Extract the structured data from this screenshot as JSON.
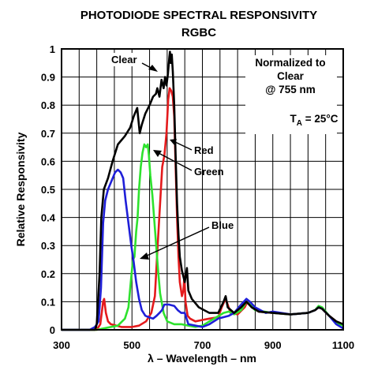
{
  "chart_data": {
    "type": "line",
    "title": "PHOTODIODE SPECTRAL RESPONSIVITY",
    "subtitle": "RGBC",
    "xlabel": "λ – Wavelength – nm",
    "ylabel": "Relative Responsivity",
    "xlim": [
      300,
      1100
    ],
    "ylim": [
      0,
      1
    ],
    "xticks": [
      "300",
      "500",
      "700",
      "900",
      "1100"
    ],
    "yticks": [
      "0",
      "0.1",
      "0.2",
      "0.3",
      "0.4",
      "0.5",
      "0.6",
      "0.7",
      "0.8",
      "0.9",
      "1"
    ],
    "grid": true,
    "notes": {
      "normalized": [
        "Normalized to",
        "Clear",
        "@ 755 nm"
      ],
      "ta_main": "T",
      "ta_sub": "A",
      "ta_value": " = 25°C"
    },
    "series": [
      {
        "name": "Clear",
        "color": "#000000",
        "points": [
          [
            300,
            0
          ],
          [
            395,
            0
          ],
          [
            400,
            0.02
          ],
          [
            408,
            0.2
          ],
          [
            413,
            0.4
          ],
          [
            420,
            0.5
          ],
          [
            432,
            0.54
          ],
          [
            445,
            0.6
          ],
          [
            460,
            0.66
          ],
          [
            480,
            0.69
          ],
          [
            495,
            0.72
          ],
          [
            505,
            0.76
          ],
          [
            515,
            0.79
          ],
          [
            522,
            0.7
          ],
          [
            528,
            0.73
          ],
          [
            538,
            0.77
          ],
          [
            550,
            0.8
          ],
          [
            560,
            0.83
          ],
          [
            568,
            0.84
          ],
          [
            572,
            0.86
          ],
          [
            578,
            0.83
          ],
          [
            584,
            0.89
          ],
          [
            590,
            0.86
          ],
          [
            594,
            0.9
          ],
          [
            598,
            0.87
          ],
          [
            602,
            0.91
          ],
          [
            606,
            0.97
          ],
          [
            608,
            0.99
          ],
          [
            610,
            0.95
          ],
          [
            613,
            0.98
          ],
          [
            616,
            0.92
          ],
          [
            620,
            0.8
          ],
          [
            624,
            0.62
          ],
          [
            628,
            0.45
          ],
          [
            632,
            0.34
          ],
          [
            636,
            0.26
          ],
          [
            642,
            0.21
          ],
          [
            650,
            0.17
          ],
          [
            656,
            0.22
          ],
          [
            660,
            0.14
          ],
          [
            670,
            0.11
          ],
          [
            690,
            0.08
          ],
          [
            720,
            0.06
          ],
          [
            745,
            0.06
          ],
          [
            760,
            0.1
          ],
          [
            766,
            0.12
          ],
          [
            772,
            0.08
          ],
          [
            790,
            0.06
          ],
          [
            810,
            0.08
          ],
          [
            825,
            0.1
          ],
          [
            840,
            0.08
          ],
          [
            860,
            0.065
          ],
          [
            900,
            0.06
          ],
          [
            950,
            0.055
          ],
          [
            1000,
            0.06
          ],
          [
            1020,
            0.07
          ],
          [
            1030,
            0.08
          ],
          [
            1040,
            0.075
          ],
          [
            1060,
            0.05
          ],
          [
            1080,
            0.03
          ],
          [
            1100,
            0.02
          ]
        ]
      },
      {
        "name": "Red",
        "color": "#e41a1c",
        "points": [
          [
            300,
            0
          ],
          [
            400,
            0
          ],
          [
            410,
            0.02
          ],
          [
            418,
            0.1
          ],
          [
            421,
            0.11
          ],
          [
            426,
            0.06
          ],
          [
            432,
            0.03
          ],
          [
            440,
            0.02
          ],
          [
            470,
            0.01
          ],
          [
            500,
            0.01
          ],
          [
            520,
            0.015
          ],
          [
            540,
            0.03
          ],
          [
            555,
            0.06
          ],
          [
            565,
            0.12
          ],
          [
            572,
            0.28
          ],
          [
            580,
            0.45
          ],
          [
            586,
            0.58
          ],
          [
            592,
            0.62
          ],
          [
            598,
            0.7
          ],
          [
            603,
            0.82
          ],
          [
            607,
            0.86
          ],
          [
            612,
            0.85
          ],
          [
            616,
            0.83
          ],
          [
            620,
            0.76
          ],
          [
            624,
            0.58
          ],
          [
            628,
            0.4
          ],
          [
            632,
            0.26
          ],
          [
            636,
            0.17
          ],
          [
            642,
            0.12
          ],
          [
            646,
            0.14
          ],
          [
            649,
            0.19
          ],
          [
            652,
            0.1
          ],
          [
            658,
            0.05
          ],
          [
            665,
            0.04
          ],
          [
            680,
            0.03
          ],
          [
            700,
            0.035
          ],
          [
            720,
            0.04
          ],
          [
            745,
            0.045
          ],
          [
            755,
            0.08
          ],
          [
            762,
            0.1
          ],
          [
            766,
            0.11
          ],
          [
            772,
            0.09
          ],
          [
            780,
            0.06
          ],
          [
            800,
            0.055
          ],
          [
            820,
            0.08
          ],
          [
            828,
            0.1
          ],
          [
            840,
            0.08
          ],
          [
            860,
            0.065
          ],
          [
            900,
            0.06
          ],
          [
            950,
            0.055
          ],
          [
            1000,
            0.06
          ],
          [
            1020,
            0.07
          ],
          [
            1030,
            0.08
          ],
          [
            1040,
            0.075
          ],
          [
            1060,
            0.05
          ],
          [
            1080,
            0.03
          ],
          [
            1100,
            0.02
          ]
        ]
      },
      {
        "name": "Green",
        "color": "#2ee22e",
        "points": [
          [
            300,
            0
          ],
          [
            400,
            0
          ],
          [
            420,
            0.005
          ],
          [
            440,
            0.01
          ],
          [
            460,
            0.015
          ],
          [
            480,
            0.04
          ],
          [
            490,
            0.08
          ],
          [
            498,
            0.19
          ],
          [
            503,
            0.25
          ],
          [
            507,
            0.26
          ],
          [
            512,
            0.35
          ],
          [
            516,
            0.4
          ],
          [
            520,
            0.5
          ],
          [
            525,
            0.58
          ],
          [
            530,
            0.63
          ],
          [
            535,
            0.66
          ],
          [
            540,
            0.65
          ],
          [
            545,
            0.66
          ],
          [
            548,
            0.62
          ],
          [
            552,
            0.55
          ],
          [
            558,
            0.48
          ],
          [
            564,
            0.38
          ],
          [
            570,
            0.28
          ],
          [
            575,
            0.2
          ],
          [
            580,
            0.13
          ],
          [
            590,
            0.06
          ],
          [
            600,
            0.03
          ],
          [
            620,
            0.02
          ],
          [
            640,
            0.02
          ],
          [
            660,
            0.015
          ],
          [
            680,
            0.01
          ],
          [
            700,
            0.015
          ],
          [
            720,
            0.03
          ],
          [
            740,
            0.045
          ],
          [
            760,
            0.06
          ],
          [
            775,
            0.065
          ],
          [
            790,
            0.055
          ],
          [
            810,
            0.07
          ],
          [
            825,
            0.1
          ],
          [
            835,
            0.09
          ],
          [
            850,
            0.07
          ],
          [
            900,
            0.06
          ],
          [
            950,
            0.055
          ],
          [
            1000,
            0.06
          ],
          [
            1020,
            0.07
          ],
          [
            1030,
            0.085
          ],
          [
            1040,
            0.08
          ],
          [
            1060,
            0.05
          ],
          [
            1080,
            0.025
          ],
          [
            1100,
            0.015
          ]
        ]
      },
      {
        "name": "Blue",
        "color": "#1f1fd8",
        "points": [
          [
            300,
            0
          ],
          [
            380,
            0
          ],
          [
            395,
            0.01
          ],
          [
            405,
            0.03
          ],
          [
            412,
            0.15
          ],
          [
            418,
            0.38
          ],
          [
            424,
            0.46
          ],
          [
            432,
            0.5
          ],
          [
            442,
            0.53
          ],
          [
            452,
            0.56
          ],
          [
            460,
            0.57
          ],
          [
            468,
            0.56
          ],
          [
            475,
            0.54
          ],
          [
            482,
            0.46
          ],
          [
            490,
            0.38
          ],
          [
            498,
            0.3
          ],
          [
            505,
            0.24
          ],
          [
            512,
            0.17
          ],
          [
            520,
            0.11
          ],
          [
            528,
            0.07
          ],
          [
            538,
            0.05
          ],
          [
            548,
            0.045
          ],
          [
            560,
            0.04
          ],
          [
            570,
            0.05
          ],
          [
            578,
            0.06
          ],
          [
            585,
            0.07
          ],
          [
            592,
            0.09
          ],
          [
            605,
            0.09
          ],
          [
            620,
            0.085
          ],
          [
            630,
            0.07
          ],
          [
            640,
            0.06
          ],
          [
            650,
            0.06
          ],
          [
            660,
            0.02
          ],
          [
            680,
            0.015
          ],
          [
            700,
            0.01
          ],
          [
            720,
            0.02
          ],
          [
            745,
            0.04
          ],
          [
            760,
            0.045
          ],
          [
            775,
            0.05
          ],
          [
            790,
            0.06
          ],
          [
            810,
            0.09
          ],
          [
            825,
            0.11
          ],
          [
            835,
            0.1
          ],
          [
            850,
            0.08
          ],
          [
            880,
            0.06
          ],
          [
            900,
            0.065
          ],
          [
            950,
            0.055
          ],
          [
            1000,
            0.06
          ],
          [
            1020,
            0.07
          ],
          [
            1030,
            0.08
          ],
          [
            1040,
            0.075
          ],
          [
            1060,
            0.05
          ],
          [
            1080,
            0.02
          ],
          [
            1100,
            0.005
          ]
        ]
      }
    ]
  }
}
